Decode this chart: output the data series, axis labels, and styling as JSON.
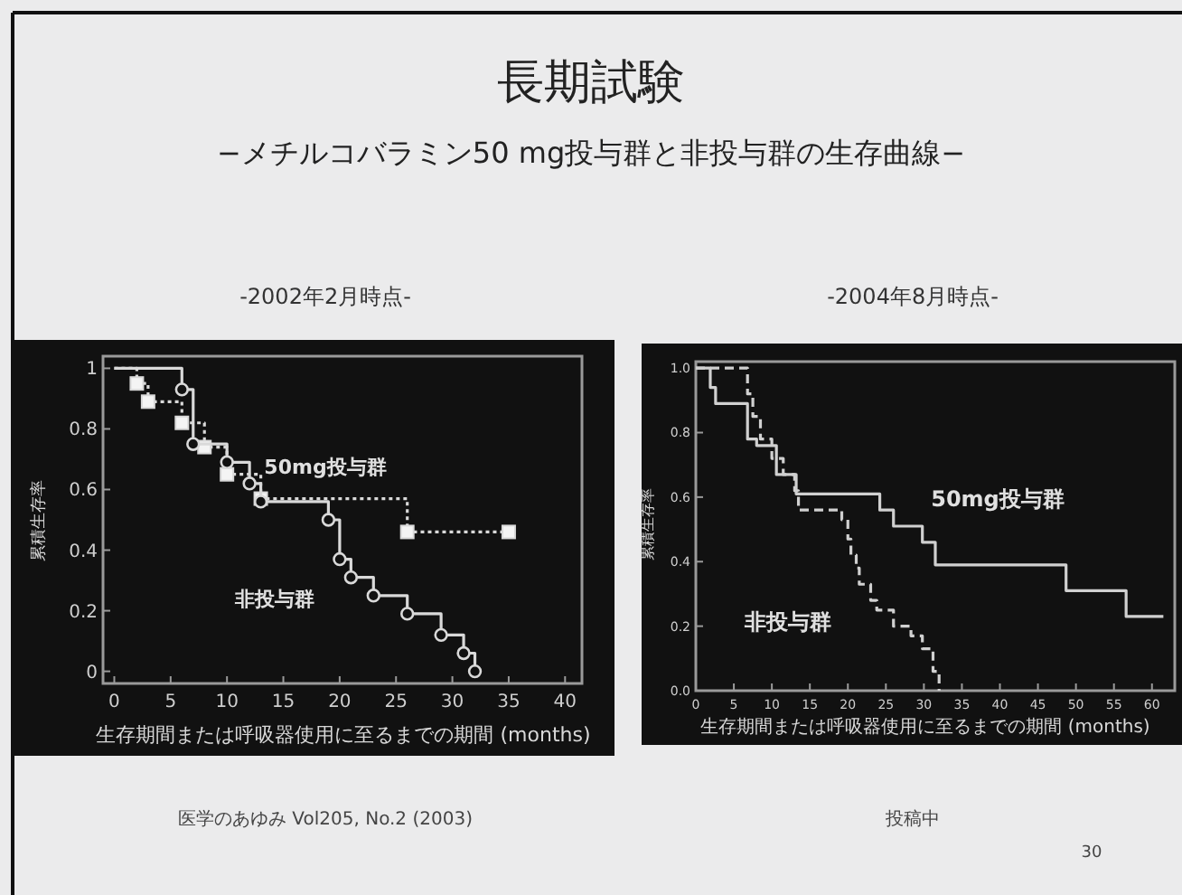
{
  "chart_data": [
    {
      "type": "step",
      "title": "-2002年2月時点-",
      "xlabel": "生存期間または呼吸器使用に至るまでの期間 (months)",
      "ylabel": "累積生存率",
      "xlim": [
        -1,
        41.5
      ],
      "ylim": [
        -0.04,
        1.04
      ],
      "xticks": [
        0,
        5,
        10,
        15,
        20,
        25,
        30,
        35,
        40
      ],
      "yticks": [
        0,
        0.2,
        0.4,
        0.6,
        0.8,
        1
      ],
      "annotations": [
        "長期試験",
        "−メチルコバラミン50 mg投与群と非投与群の生存曲線−",
        "医学のあゆみ Vol205, No.2 (2003)",
        "30"
      ],
      "series": [
        {
          "name": "50mg投与群",
          "color": "#d9d9d9",
          "line_style": "dotted",
          "marker": "square",
          "x": [
            0,
            2,
            3,
            6,
            8,
            10,
            13,
            26,
            35
          ],
          "values": [
            1,
            0.95,
            0.89,
            0.82,
            0.74,
            0.65,
            0.57,
            0.46,
            0.46
          ]
        },
        {
          "name": "非投与群",
          "color": "#d9d9d9",
          "line_style": "solid",
          "marker": "circle",
          "x": [
            0,
            6,
            7,
            10,
            12,
            13,
            19,
            20,
            21,
            23,
            26,
            29,
            31,
            32
          ],
          "values": [
            1,
            0.93,
            0.75,
            0.69,
            0.62,
            0.56,
            0.5,
            0.37,
            0.31,
            0.25,
            0.19,
            0.12,
            0.06,
            0
          ]
        }
      ]
    },
    {
      "type": "step",
      "title": "-2004年8月時点-",
      "xlabel": "生存期間または呼吸器使用に至るまでの期間 (months)",
      "ylabel": "累積生存率",
      "xlim": [
        0,
        63
      ],
      "ylim": [
        0,
        1.02
      ],
      "xticks": [
        0,
        5,
        10,
        15,
        20,
        25,
        30,
        35,
        40,
        45,
        50,
        55,
        60
      ],
      "yticks": [
        {
          "value": 0,
          "label": "0.0"
        },
        0.2,
        0.4,
        0.6,
        0.8,
        {
          "value": 1,
          "label": "1.0"
        }
      ],
      "annotations": [
        "投稿中"
      ],
      "series": [
        {
          "name": "50mg投与群",
          "color": "#d0d0d0",
          "line_style": "solid",
          "x": [
            0,
            1.9,
            2.6,
            6.8,
            8,
            10.6,
            13.2,
            24.2,
            26,
            29.8,
            31.5,
            48.7,
            56.6,
            61.5
          ],
          "values": [
            1,
            0.94,
            0.89,
            0.78,
            0.76,
            0.67,
            0.61,
            0.56,
            0.51,
            0.46,
            0.39,
            0.31,
            0.23,
            0.23
          ]
        },
        {
          "name": "非投与群",
          "color": "#d0d0d0",
          "line_style": "dashed",
          "x": [
            0,
            6.8,
            7.5,
            8.5,
            10,
            11.5,
            13,
            13.5,
            19.2,
            20,
            20.4,
            21.1,
            21.5,
            23,
            23.8,
            26,
            28.3,
            29.8,
            31.2,
            32
          ],
          "values": [
            1,
            0.92,
            0.85,
            0.78,
            0.72,
            0.67,
            0.62,
            0.56,
            0.53,
            0.47,
            0.42,
            0.38,
            0.33,
            0.28,
            0.25,
            0.2,
            0.17,
            0.13,
            0.06,
            0
          ]
        }
      ]
    }
  ]
}
